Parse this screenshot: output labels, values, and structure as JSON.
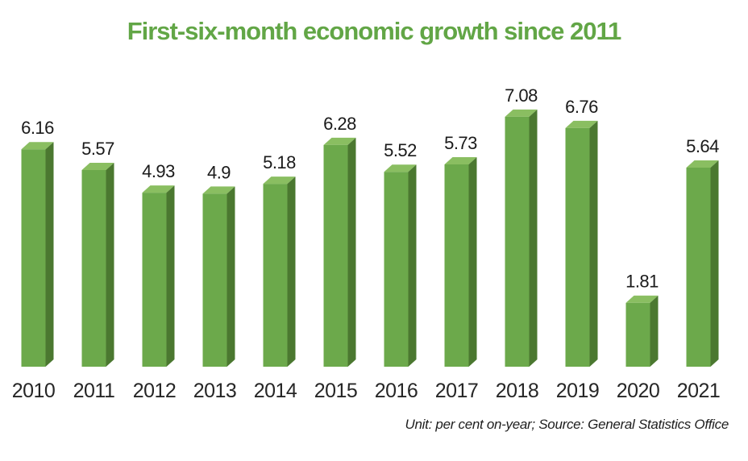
{
  "title": "First-six-month economic growth since 2011",
  "footnote": "Unit: per cent on-year; Source: General Statistics Office",
  "colors": {
    "title_green": "#62a646",
    "bar_front": "#6ca94b",
    "bar_top": "#8abe61",
    "bar_side": "#4b7830",
    "value_label": "#1a1a1a",
    "year_label": "#262626",
    "footnote_text": "#1e1e1e",
    "background": "#ffffff"
  },
  "chart_data": {
    "type": "bar",
    "bar_style": "3d",
    "categories": [
      "2010",
      "2011",
      "2012",
      "2013",
      "2014",
      "2015",
      "2016",
      "2017",
      "2018",
      "2019",
      "2020",
      "2021"
    ],
    "values": [
      6.16,
      5.57,
      4.93,
      4.9,
      5.18,
      6.28,
      5.52,
      5.73,
      7.08,
      6.76,
      1.81,
      5.64
    ],
    "value_labels": [
      "6.16",
      "5.57",
      "4.93",
      "4.9",
      "5.18",
      "6.28",
      "5.52",
      "5.73",
      "7.08",
      "6.76",
      "1.81",
      "5.64"
    ],
    "title": "First-six-month economic growth since 2011",
    "xlabel": "",
    "ylabel": "",
    "unit": "per cent on-year",
    "source": "General Statistics Office",
    "ylim": [
      0,
      7.5
    ],
    "grid": false,
    "legend": false,
    "data_labels": true,
    "axis_lines": false
  }
}
